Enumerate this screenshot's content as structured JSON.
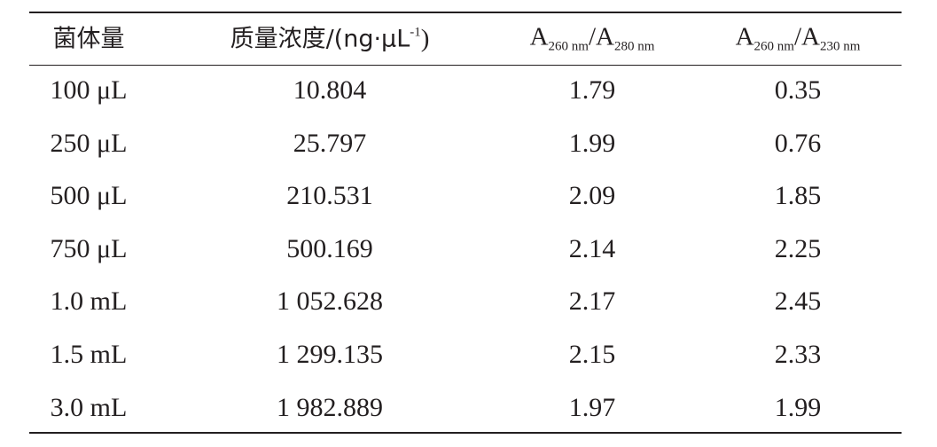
{
  "table": {
    "headers": [
      [
        "菌体量"
      ],
      [
        "质量浓度/(ng·μL",
        "-1",
        ")"
      ],
      [
        "A",
        "260 nm",
        "/A",
        "280 nm"
      ],
      [
        "A",
        "260 nm",
        "/A",
        "230 nm"
      ]
    ],
    "rows": [
      [
        "100 μL",
        "10.804",
        "1.79",
        "0.35"
      ],
      [
        "250 μL",
        "25.797",
        "1.99",
        "0.76"
      ],
      [
        "500 μL",
        "210.531",
        "2.09",
        "1.85"
      ],
      [
        "750 μL",
        "500.169",
        "2.14",
        "2.25"
      ],
      [
        "1.0 mL",
        "1 052.628",
        "2.17",
        "2.45"
      ],
      [
        "1.5 mL",
        "1 299.135",
        "2.15",
        "2.33"
      ],
      [
        "3.0 mL",
        "1 982.889",
        "1.97",
        "1.99"
      ]
    ]
  }
}
